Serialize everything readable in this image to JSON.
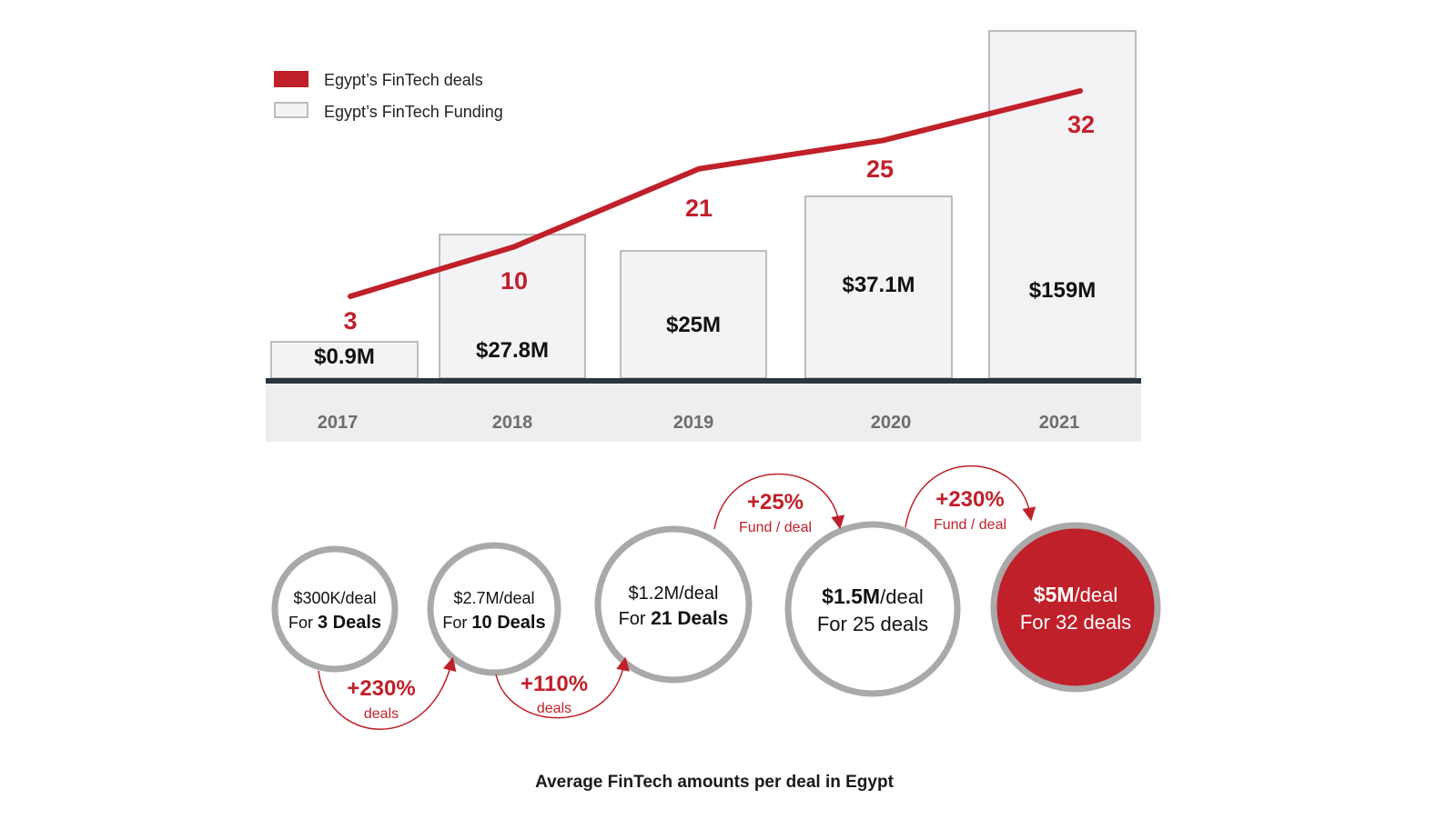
{
  "colors": {
    "accent": "#c0202a",
    "bar_fill": "#f3f3f5",
    "bar_stroke": "#a8a8ac",
    "axis": "#2a3640",
    "axis_band": "#eeeef0",
    "circle_ring": "#a9a9a9",
    "text": "#111111",
    "year_text": "#6d6d6d"
  },
  "legend": {
    "deals": "Egypt’s FinTech deals",
    "funding": "Egypt’s FinTech Funding"
  },
  "chart_data": {
    "type": "bar",
    "categories": [
      "2017",
      "2018",
      "2019",
      "2020",
      "2021"
    ],
    "series": [
      {
        "name": "Egypt’s FinTech Funding",
        "kind": "bar",
        "values": [
          0.9,
          27.8,
          25,
          37.1,
          159
        ],
        "labels": [
          "$0.9M",
          "$27.8M",
          "$25M",
          "$37.1M",
          "$159M"
        ]
      },
      {
        "name": "Egypt’s FinTech deals",
        "kind": "line",
        "values": [
          3,
          10,
          21,
          25,
          32
        ]
      }
    ],
    "title": "",
    "xlabel": "",
    "ylabel": "",
    "grid": false,
    "legend_position": "top-left"
  },
  "per_deal": {
    "circles": [
      {
        "amount": "$300K",
        "unit": "/deal",
        "pre": "For ",
        "count": "3 Deals",
        "bold_count": true,
        "highlight": false
      },
      {
        "amount": "$2.7M",
        "unit": "/deal",
        "pre": "For ",
        "count": "10 Deals",
        "bold_count": true,
        "highlight": false
      },
      {
        "amount": "$1.2M",
        "unit": "/deal",
        "pre": "For ",
        "count": "21 Deals",
        "bold_count": true,
        "highlight": false
      },
      {
        "amount": "$1.5M",
        "unit": "/deal",
        "pre": "For 25 deals",
        "count": "",
        "bold_count": false,
        "highlight": false
      },
      {
        "amount": "$5M",
        "unit": "/deal",
        "pre": "For 32 deals",
        "count": "",
        "bold_count": false,
        "highlight": true
      }
    ],
    "arrows": [
      {
        "pct": "+230%",
        "label": "deals",
        "position": "below"
      },
      {
        "pct": "+110%",
        "label": "deals",
        "position": "below"
      },
      {
        "pct": "+25%",
        "label": "Fund / deal",
        "position": "above"
      },
      {
        "pct": "+230%",
        "label": "Fund / deal",
        "position": "above"
      }
    ],
    "caption": "Average FinTech amounts per deal in Egypt"
  }
}
